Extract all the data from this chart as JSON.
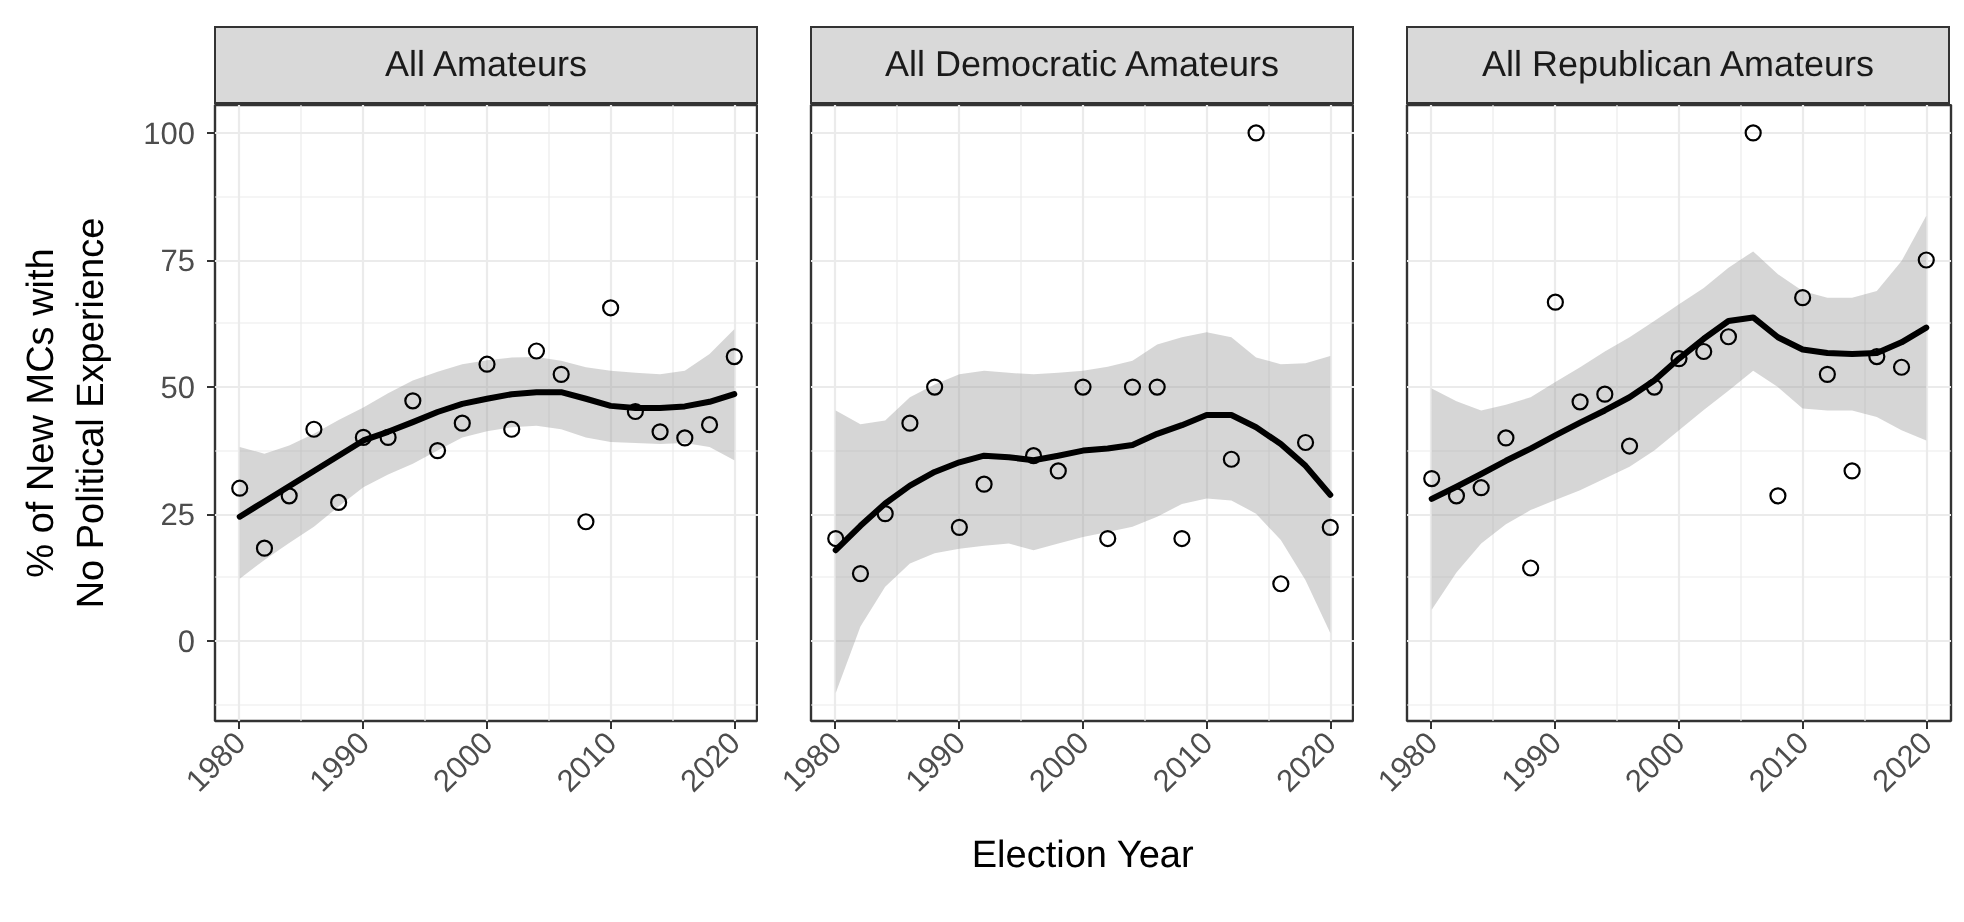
{
  "chart_data": [
    {
      "type": "scatter",
      "title": "All Amateurs",
      "ylabel": "% of New MCs with\nNo Political Experience",
      "xlim": [
        1978,
        2022
      ],
      "xticks": [
        1980,
        1990,
        2000,
        2010,
        2020
      ],
      "ylim": [
        -15.7,
        105.5
      ],
      "yticks": [
        0,
        25,
        50,
        75,
        100
      ],
      "grid": true,
      "series": [
        {
          "type": "line",
          "color": "#000000",
          "x": [
            1980,
            1982,
            1984,
            1986,
            1988,
            1990,
            1992,
            1994,
            1996,
            1998,
            2000,
            2002,
            2004,
            2006,
            2008,
            2010,
            2012,
            2014,
            2016,
            2018,
            2020
          ],
          "values": [
            24.5,
            27.5,
            30.5,
            33.5,
            36.5,
            39.5,
            41.2,
            43.1,
            45.1,
            46.7,
            47.7,
            48.6,
            49,
            49,
            47.7,
            46.3,
            45.9,
            45.9,
            46.2,
            47.1,
            48.6
          ],
          "lower": [
            12.3,
            16,
            19.3,
            22.5,
            26.5,
            30.3,
            32.8,
            34.9,
            37.5,
            40.1,
            41.3,
            42.1,
            42.4,
            41.7,
            40.1,
            39.2,
            39,
            38.8,
            39,
            38.2,
            35.6
          ],
          "upper": [
            38.2,
            36.9,
            38.5,
            40.8,
            43.5,
            46,
            48.8,
            51.3,
            53,
            54.5,
            55.3,
            55.8,
            55.9,
            55.2,
            53.9,
            53.2,
            52.8,
            52.5,
            53.2,
            56.5,
            61.4
          ]
        },
        {
          "type": "scatter",
          "color": "#000000",
          "marker": "circle",
          "x": [
            1980,
            1982,
            1984,
            1986,
            1988,
            1990,
            1992,
            1994,
            1996,
            1998,
            2000,
            2002,
            2004,
            2006,
            2008,
            2010,
            2012,
            2014,
            2016,
            2018,
            2020
          ],
          "values": [
            30.1,
            18.3,
            28.6,
            41.7,
            27.3,
            40.1,
            40.1,
            47.3,
            37.5,
            42.9,
            54.5,
            41.7,
            57.1,
            52.5,
            23.5,
            65.6,
            45.2,
            41.2,
            40,
            42.6,
            56
          ]
        }
      ]
    },
    {
      "type": "scatter",
      "title": "All Democratic Amateurs",
      "xlabel": "Election Year",
      "xlim": [
        1978,
        2022
      ],
      "xticks": [
        1980,
        1990,
        2000,
        2010,
        2020
      ],
      "ylim": [
        -15.7,
        105.5
      ],
      "yticks": [
        0,
        25,
        50,
        75,
        100
      ],
      "grid": true,
      "tick_labels": "x",
      "series": [
        {
          "type": "line",
          "color": "#000000",
          "x": [
            1980,
            1982,
            1984,
            1986,
            1988,
            1990,
            1992,
            1994,
            1996,
            1998,
            2000,
            2002,
            2004,
            2006,
            2008,
            2010,
            2012,
            2014,
            2016,
            2018,
            2020
          ],
          "values": [
            17.9,
            22.7,
            27.1,
            30.6,
            33.3,
            35.2,
            36.5,
            36.2,
            35.6,
            36.5,
            37.5,
            37.9,
            38.6,
            40.8,
            42.5,
            44.5,
            44.5,
            42.1,
            38.8,
            34.5,
            28.8
          ],
          "lower": [
            -10.2,
            2.9,
            10.7,
            15.3,
            17.3,
            18.2,
            18.8,
            19.2,
            17.9,
            19.2,
            20.5,
            21.5,
            22.5,
            24.5,
            27,
            28.1,
            27.7,
            25.1,
            19.9,
            12,
            1.6
          ],
          "upper": [
            45.4,
            42.7,
            43.4,
            48,
            50.5,
            52.5,
            53.2,
            52.8,
            52.5,
            52.8,
            53.2,
            54,
            55.2,
            58.4,
            59.8,
            60.8,
            59.8,
            55.8,
            54.5,
            54.7,
            56.1
          ]
        },
        {
          "type": "scatter",
          "color": "#000000",
          "marker": "circle",
          "x": [
            1980,
            1982,
            1984,
            1986,
            1988,
            1990,
            1992,
            1996,
            1998,
            2000,
            2002,
            2004,
            2006,
            2008,
            2012,
            2014,
            2016,
            2018,
            2020
          ],
          "values": [
            20.2,
            13.3,
            25.1,
            42.9,
            50,
            22.4,
            30.9,
            36.5,
            33.5,
            50,
            20.2,
            50,
            50,
            20.2,
            35.8,
            100,
            11.3,
            39.1,
            22.4
          ]
        }
      ]
    },
    {
      "type": "scatter",
      "title": "All Republican Amateurs",
      "xlim": [
        1978,
        2022
      ],
      "xticks": [
        1980,
        1990,
        2000,
        2010,
        2020
      ],
      "ylim": [
        -15.7,
        105.5
      ],
      "yticks": [
        0,
        25,
        50,
        75,
        100
      ],
      "grid": true,
      "tick_labels": "x",
      "series": [
        {
          "type": "line",
          "color": "#000000",
          "x": [
            1980,
            1982,
            1984,
            1986,
            1988,
            1990,
            1992,
            1994,
            1996,
            1998,
            2000,
            2002,
            2004,
            2006,
            2008,
            2010,
            2012,
            2014,
            2016,
            2018,
            2020
          ],
          "values": [
            28,
            30.4,
            32.9,
            35.5,
            37.9,
            40.5,
            43,
            45.4,
            48,
            51.3,
            55.6,
            59.5,
            63,
            63.7,
            59.8,
            57.4,
            56.7,
            56.5,
            56.7,
            58.8,
            61.7
          ],
          "lower": [
            6.2,
            13.5,
            19.2,
            23,
            25.8,
            27.8,
            29.7,
            32,
            34.3,
            37.5,
            41.5,
            45.5,
            49.3,
            53.2,
            50,
            45.8,
            45.4,
            45.4,
            44.1,
            41.5,
            39.5
          ],
          "upper": [
            49.7,
            47.2,
            45.4,
            46.5,
            48,
            51,
            53.9,
            57,
            59.8,
            63,
            66.3,
            69.5,
            73.5,
            76.7,
            72.2,
            68.9,
            67.6,
            67.6,
            68.9,
            74.8,
            83.7
          ]
        },
        {
          "type": "scatter",
          "color": "#000000",
          "marker": "circle",
          "x": [
            1980,
            1982,
            1984,
            1986,
            1988,
            1990,
            1992,
            1994,
            1996,
            1998,
            2000,
            2002,
            2004,
            2006,
            2008,
            2010,
            2012,
            2014,
            2016,
            2018,
            2020
          ],
          "values": [
            32,
            28.6,
            30.2,
            40,
            14.4,
            66.7,
            47.1,
            48.6,
            38.4,
            50,
            55.6,
            57,
            59.9,
            100,
            28.6,
            67.6,
            52.5,
            33.5,
            56,
            53.9,
            75
          ]
        }
      ]
    }
  ]
}
